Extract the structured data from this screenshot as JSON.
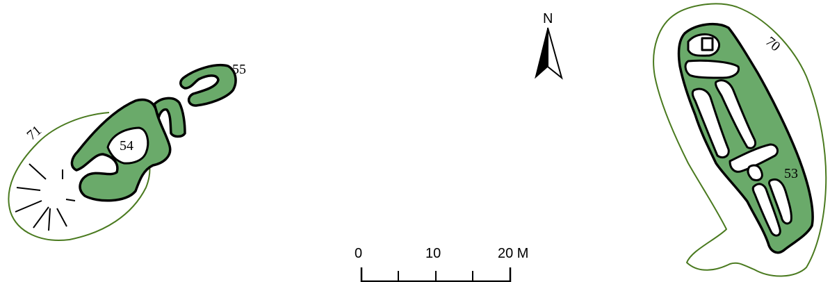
{
  "map": {
    "feature_color": "#6aaa6a",
    "boundary_color": "#4a7a1f",
    "labels": {
      "f53": "53",
      "f54": "54",
      "f55": "55",
      "b70": "70",
      "b71": "71"
    },
    "north": {
      "label": "N"
    },
    "scale_bar": {
      "ticks": [
        "0",
        "10",
        "20 M"
      ],
      "unit": "M"
    }
  }
}
